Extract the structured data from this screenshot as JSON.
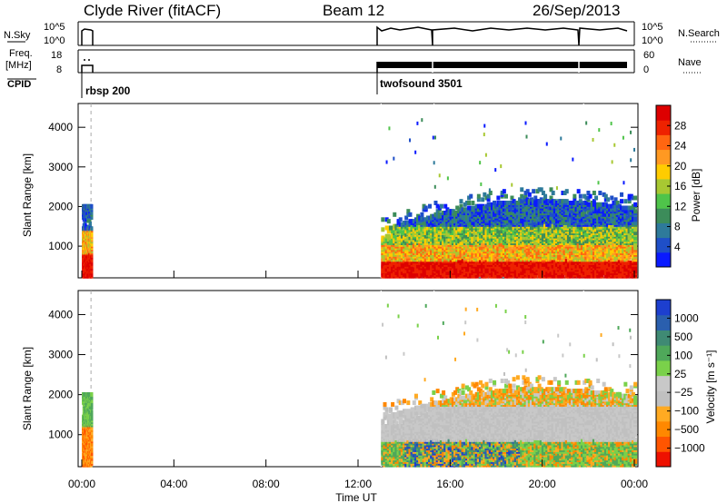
{
  "header": {
    "station": "Clyde River (fitACF)",
    "beam": "Beam 12",
    "date": "26/Sep/2013"
  },
  "strip_labels": {
    "nsky": "N.Sky",
    "nsky_ticks": [
      "10^5",
      "10^0"
    ],
    "nsearch": "N.Search",
    "nsearch_ticks": [
      "10^5",
      "10^0"
    ],
    "freq_line1": "Freq.",
    "freq_line2": "[MHz]",
    "freq_ticks": [
      "18",
      "8"
    ],
    "nave": "Nave",
    "nave_ticks": [
      "60",
      "0"
    ],
    "cpid": "CPID",
    "cpid_segments": [
      {
        "label": "rbsp 200",
        "start_hour": 0.0
      },
      {
        "label": "twofsound 3501",
        "start_hour": 13.0
      }
    ]
  },
  "colors": {
    "power_scale": [
      "#0a1aff",
      "#1f4fc8",
      "#2e7a9a",
      "#3c8c5a",
      "#4fc44a",
      "#a8c832",
      "#ffcc00",
      "#ff9922",
      "#ff6611",
      "#ee2200",
      "#dd0000"
    ],
    "velocity_scale": [
      "#1d3fcf",
      "#2a5fae",
      "#3f8a74",
      "#4fa85a",
      "#7ad14a",
      "#c8c8c8",
      "#c0c0c0",
      "#ffaa22",
      "#ff8800",
      "#ff5500",
      "#ee1100"
    ]
  },
  "chart_data": [
    {
      "type": "heatmap",
      "name": "power",
      "ylabel": "Slant Range [km]",
      "yticks": [
        "1000",
        "2000",
        "3000",
        "4000"
      ],
      "ylim": [
        200,
        4600
      ],
      "xlim": [
        0,
        24
      ],
      "colorbar_label": "Power [dB]",
      "colorbar_ticks": [
        "4",
        "8",
        "12",
        "16",
        "20",
        "24",
        "28"
      ],
      "colorbar_range": [
        0,
        30
      ],
      "data_segments": [
        {
          "start_hour": 0.0,
          "end_hour": 0.4,
          "range_km": [
            300,
            2100
          ],
          "dominant": "high power below 1000 km"
        },
        {
          "start_hour": 13.0,
          "end_hour": 24.0,
          "range_km": [
            300,
            2600
          ],
          "dominant": "high power below 800 km"
        }
      ]
    },
    {
      "type": "heatmap",
      "name": "velocity",
      "ylabel": "Slant Range [km]",
      "yticks": [
        "1000",
        "2000",
        "3000",
        "4000"
      ],
      "ylim": [
        200,
        4600
      ],
      "xlim": [
        0,
        24
      ],
      "xlabel": "Time UT",
      "xticks": [
        "00:00",
        "04:00",
        "08:00",
        "12:00",
        "16:00",
        "20:00",
        "00:00"
      ],
      "colorbar_label": "Velocity [m s⁻¹]",
      "colorbar_ticks": [
        "1000",
        "500",
        "100",
        "25",
        "−25",
        "−100",
        "−500",
        "−1000"
      ],
      "data_segments": [
        {
          "start_hour": 0.0,
          "end_hour": 0.4,
          "range_km": [
            300,
            2100
          ],
          "dominant": "negative velocities"
        },
        {
          "start_hour": 13.0,
          "end_hour": 24.0,
          "range_km": [
            300,
            2600
          ],
          "dominant": "mixed, near zero above 1000 km"
        }
      ]
    }
  ]
}
